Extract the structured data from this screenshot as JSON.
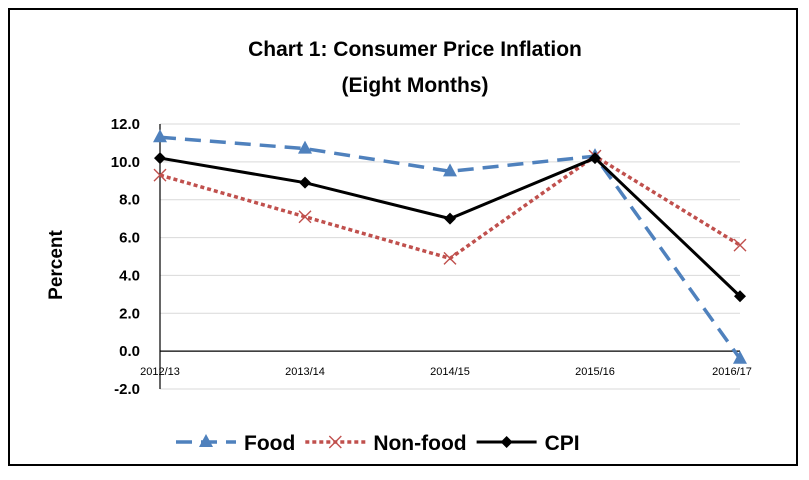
{
  "chart_data": {
    "type": "line",
    "title": "Chart 1: Consumer Price Inflation",
    "subtitle": "(Eight Months)",
    "ylabel": "Percent",
    "ylim": [
      -2.0,
      12.0
    ],
    "yticks": [
      "12.0",
      "10.0",
      "8.0",
      "6.0",
      "4.0",
      "2.0",
      "0.0",
      "-2.0"
    ],
    "categories": [
      "2012/13",
      "2013/14",
      "2014/15",
      "2015/16",
      "2016/17"
    ],
    "grid": true,
    "legend_position": "bottom",
    "series": [
      {
        "name": "Food",
        "values": [
          11.3,
          10.7,
          9.5,
          10.3,
          -0.4
        ],
        "color": "#4F81BD",
        "style": "dashed",
        "marker": "triangle"
      },
      {
        "name": "Non-food",
        "values": [
          9.3,
          7.1,
          4.9,
          10.3,
          5.6
        ],
        "color": "#C0504D",
        "style": "dotted",
        "marker": "x"
      },
      {
        "name": "CPI",
        "values": [
          10.2,
          8.9,
          7.0,
          10.2,
          2.9
        ],
        "color": "#000000",
        "style": "solid",
        "marker": "diamond"
      }
    ]
  }
}
